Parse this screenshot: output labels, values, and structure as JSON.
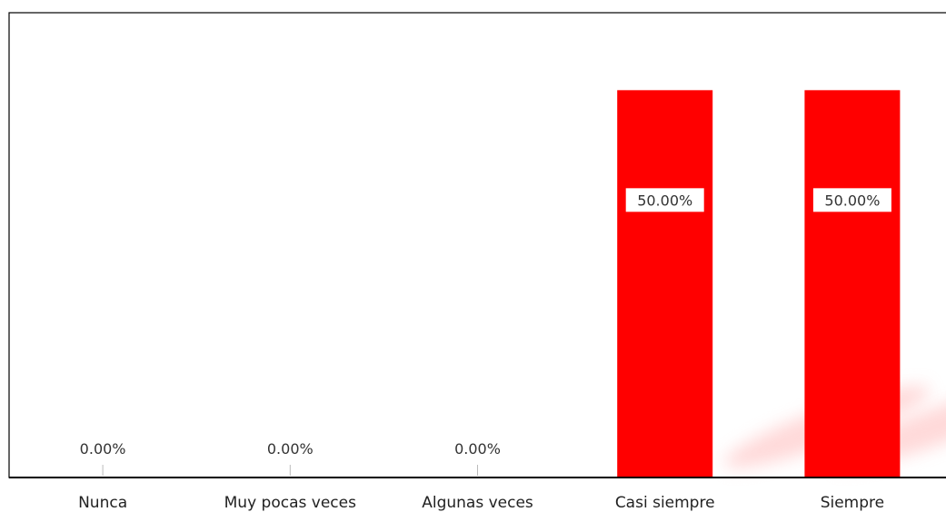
{
  "chart_data": {
    "type": "bar",
    "categories": [
      "Nunca",
      "Muy pocas veces",
      "Algunas veces",
      "Casi siempre",
      "Siempre"
    ],
    "values": [
      0,
      0,
      0,
      50,
      50
    ],
    "data_labels": [
      "0.00%",
      "0.00%",
      "0.00%",
      "50.00%",
      "50.00%"
    ],
    "unit": "%",
    "ylim": [
      0,
      60
    ],
    "grid": false,
    "legend": "none",
    "title": "",
    "xlabel": "",
    "ylabel": "",
    "colors": {
      "bar": "#ff0000",
      "axis": "#000000",
      "frame": "#000000",
      "shadow": "#ffd6d6"
    }
  }
}
